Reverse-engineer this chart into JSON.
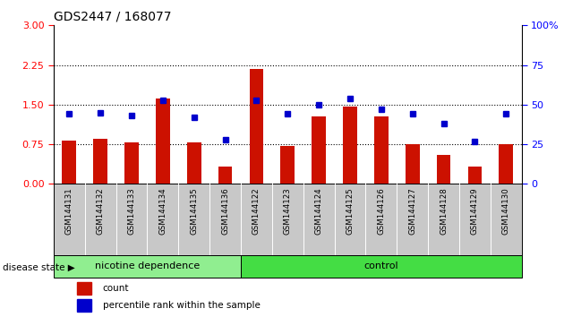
{
  "title": "GDS2447 / 168077",
  "samples": [
    "GSM144131",
    "GSM144132",
    "GSM144133",
    "GSM144134",
    "GSM144135",
    "GSM144136",
    "GSM144122",
    "GSM144123",
    "GSM144124",
    "GSM144125",
    "GSM144126",
    "GSM144127",
    "GSM144128",
    "GSM144129",
    "GSM144130"
  ],
  "counts": [
    0.82,
    0.85,
    0.78,
    1.62,
    0.78,
    0.32,
    2.18,
    0.72,
    1.27,
    1.47,
    1.27,
    0.75,
    0.55,
    0.32,
    0.75
  ],
  "percentiles": [
    44,
    45,
    43,
    53,
    42,
    28,
    53,
    44,
    50,
    54,
    47,
    44,
    38,
    27,
    44
  ],
  "groups": [
    "nicotine dependence",
    "nicotine dependence",
    "nicotine dependence",
    "nicotine dependence",
    "nicotine dependence",
    "nicotine dependence",
    "control",
    "control",
    "control",
    "control",
    "control",
    "control",
    "control",
    "control",
    "control"
  ],
  "nicotine_color": "#90EE90",
  "control_color": "#44DD44",
  "bar_color": "#CC1100",
  "dot_color": "#0000CC",
  "tick_bg": "#C8C8C8",
  "ylim_left": [
    0,
    3
  ],
  "ylim_right": [
    0,
    100
  ],
  "yticks_left": [
    0,
    0.75,
    1.5,
    2.25,
    3
  ],
  "yticks_right": [
    0,
    25,
    50,
    75,
    100
  ],
  "hlines": [
    0.75,
    1.5,
    2.25
  ]
}
